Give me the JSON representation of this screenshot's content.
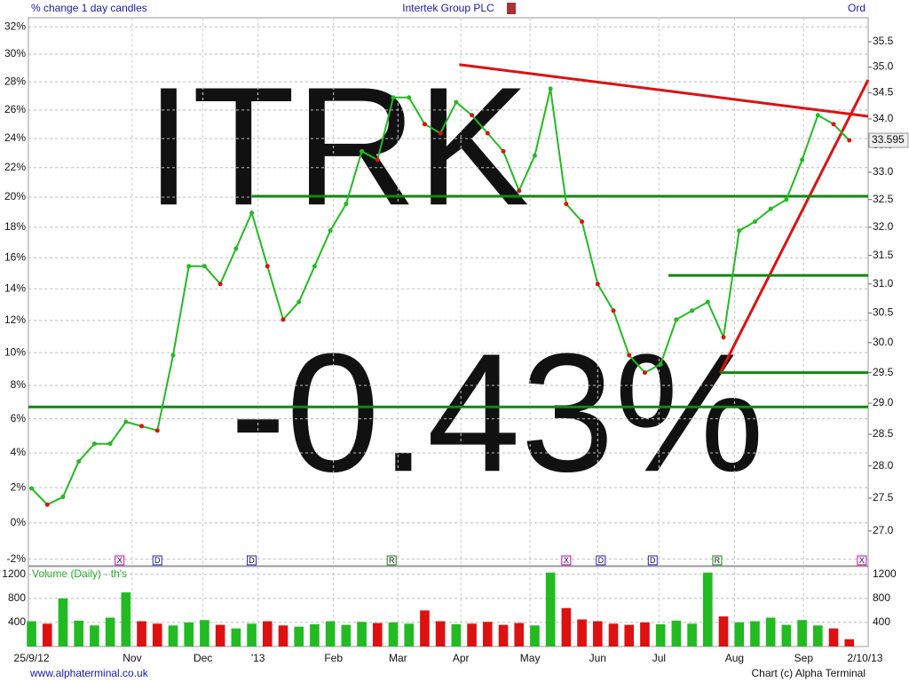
{
  "chart_data": {
    "type": "line",
    "title": "Intertek Group PLC",
    "subtitle": "% change 1 day candles",
    "share_class": "Ord",
    "ticker": "ITRK",
    "change": "-0.43%",
    "volume_label": "Volume (Daily) - th's",
    "website": "www.alphaterminal.co.uk",
    "credit": "Chart (c) Alpha Terminal",
    "x": [
      0,
      1,
      2,
      3,
      4,
      5,
      6,
      7,
      8,
      9,
      10,
      11,
      12,
      13,
      14,
      15,
      16,
      17,
      18,
      19,
      20,
      21,
      22,
      23,
      24,
      25,
      26,
      27,
      28,
      29,
      30,
      31,
      32,
      33,
      34,
      35,
      36,
      37,
      38,
      39,
      40,
      41,
      42,
      43,
      44,
      45,
      46,
      47,
      48,
      49,
      50,
      51,
      52
    ],
    "values": [
      27.65,
      27.4,
      27.52,
      28.07,
      28.35,
      28.35,
      28.7,
      28.63,
      28.56,
      29.79,
      31.31,
      31.31,
      31.0,
      31.62,
      32.26,
      31.31,
      30.39,
      30.69,
      31.31,
      31.94,
      32.42,
      33.39,
      33.23,
      34.41,
      34.41,
      33.9,
      33.73,
      34.32,
      34.07,
      33.73,
      33.39,
      32.66,
      33.31,
      34.58,
      32.42,
      32.1,
      31.0,
      30.54,
      29.79,
      29.5,
      29.64,
      30.39,
      30.54,
      30.69,
      30.09,
      31.94,
      32.1,
      32.33,
      32.5,
      33.23,
      34.07,
      33.9,
      33.595
    ],
    "up_color": "#22bb22",
    "down_color": "#dd1111",
    "log_scale": true,
    "xlim": [
      -0.2,
      53.2
    ],
    "xticks": [
      {
        "value": 0,
        "label": "25/9/12"
      },
      {
        "value": 6.4,
        "label": "Nov"
      },
      {
        "value": 10.9,
        "label": "Dec"
      },
      {
        "value": 14.4,
        "label": "'13"
      },
      {
        "value": 19.2,
        "label": "Feb"
      },
      {
        "value": 23.3,
        "label": "Mar"
      },
      {
        "value": 27.3,
        "label": "Apr"
      },
      {
        "value": 31.7,
        "label": "May"
      },
      {
        "value": 36,
        "label": "Jun"
      },
      {
        "value": 39.9,
        "label": "Jul"
      },
      {
        "value": 44.7,
        "label": "Aug"
      },
      {
        "value": 49.1,
        "label": "Sep"
      },
      {
        "value": 53,
        "label": "2/10/13"
      }
    ],
    "ylim": [
      26.48,
      35.98
    ],
    "yticks": [
      {
        "value": 27,
        "label": "27.0"
      },
      27.5,
      {
        "value": 28,
        "label": "28.0"
      },
      28.5,
      {
        "value": 29,
        "label": "29.0"
      },
      29.5,
      {
        "value": 30,
        "label": "30.0"
      },
      30.5,
      {
        "value": 31,
        "label": "31.0"
      },
      31.5,
      {
        "value": 32,
        "label": "32.0"
      },
      32.5,
      {
        "value": 33,
        "label": "33.0"
      },
      33.5,
      {
        "value": 34,
        "label": "34.0"
      },
      34.5,
      {
        "value": 35,
        "label": "35.0"
      },
      35.5
    ],
    "y2lim": [
      -2.36,
      32.67
    ],
    "y2ticks": [
      {
        "value": -2,
        "label": "-2%"
      },
      {
        "value": 0,
        "label": "0%"
      },
      {
        "value": 2,
        "label": "2%"
      },
      {
        "value": 4,
        "label": "4%"
      },
      {
        "value": 6,
        "label": "6%"
      },
      {
        "value": 8,
        "label": "8%"
      },
      {
        "value": 10,
        "label": "10%"
      },
      {
        "value": 12,
        "label": "12%"
      },
      {
        "value": 14,
        "label": "14%"
      },
      {
        "value": 16,
        "label": "16%"
      },
      {
        "value": 18,
        "label": "18%"
      },
      {
        "value": 20,
        "label": "20%"
      },
      {
        "value": 22,
        "label": "22%"
      },
      {
        "value": 24,
        "label": "24%"
      },
      {
        "value": 26,
        "label": "26%"
      },
      {
        "value": 28,
        "label": "28%"
      },
      {
        "value": 30,
        "label": "30%"
      },
      {
        "value": 32,
        "label": "32%"
      }
    ],
    "grid": true,
    "lines": [
      {
        "color": "#dd1111",
        "x": [
          27.2,
          53.2
        ],
        "y": [
          35.05,
          34.05
        ]
      },
      {
        "color": "#dd1111",
        "x": [
          43.8,
          53.2
        ],
        "y": [
          29.5,
          34.75
        ]
      },
      {
        "color": "#118811",
        "x": [
          14,
          53.2
        ],
        "y": [
          32.56,
          32.56
        ]
      },
      {
        "color": "#118811",
        "x": [
          40.5,
          53.2
        ],
        "y": [
          31.15,
          31.15
        ]
      },
      {
        "color": "#118811",
        "x": [
          43.8,
          53.2
        ],
        "y": [
          29.5,
          29.5
        ]
      },
      {
        "color": "#118811",
        "x": [
          -0.2,
          53.2
        ],
        "y": [
          28.94,
          28.94
        ]
      }
    ],
    "events": [
      {
        "x": 5.6,
        "label": "X",
        "color": "#cc00cc"
      },
      {
        "x": 8,
        "label": "D",
        "color": "#2222cc"
      },
      {
        "x": 14,
        "label": "D",
        "color": "#2222cc"
      },
      {
        "x": 22.9,
        "label": "R",
        "color": "#118811"
      },
      {
        "x": 34,
        "label": "X",
        "color": "#cc00cc"
      },
      {
        "x": 36.2,
        "label": "D",
        "color": "#2222cc"
      },
      {
        "x": 39.5,
        "label": "D",
        "color": "#2222cc"
      },
      {
        "x": 43.6,
        "label": "R",
        "color": "#118811"
      },
      {
        "x": 52.8,
        "label": "X",
        "color": "#cc00cc"
      }
    ],
    "volume": {
      "values": [
        420,
        380,
        800,
        430,
        350,
        480,
        900,
        420,
        380,
        350,
        400,
        440,
        360,
        300,
        380,
        420,
        350,
        330,
        370,
        420,
        360,
        410,
        390,
        400,
        380,
        600,
        420,
        370,
        380,
        410,
        360,
        390,
        350,
        1230,
        640,
        450,
        420,
        380,
        360,
        400,
        370,
        430,
        380,
        1230,
        500,
        400,
        420,
        480,
        360,
        440,
        350,
        300,
        120
      ],
      "ylim": [
        0,
        1330
      ],
      "yticks": [
        400,
        800,
        1200
      ]
    }
  }
}
